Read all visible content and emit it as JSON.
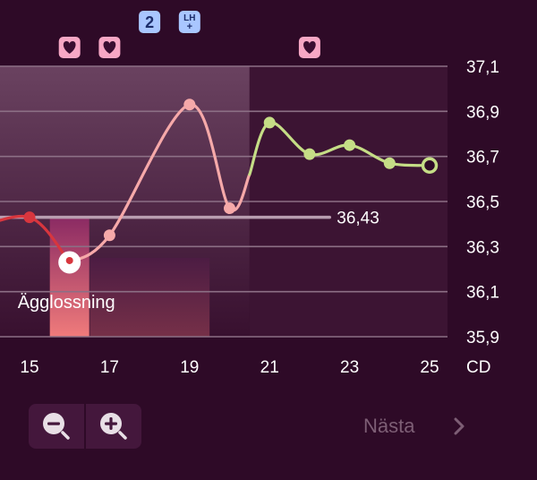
{
  "colors": {
    "background": "#2e0a27",
    "band_light": "#6a4260",
    "band_dark": "#3c1433",
    "grid": "#8c6f85",
    "baseline": "#b89db0",
    "phase_pre": "#d8363e",
    "phase_mid": "#f6a9a9",
    "phase_post": "#c5dd86",
    "ovulation_fill": "#f07b7b",
    "heart_badge": "#f7a7c5",
    "heart_icon": "#3a0e31",
    "number_badge": "#a9c6ff",
    "number_text": "#1c2d6b",
    "label_text": "#ffffff",
    "muted_text": "#7d5e75"
  },
  "chart_data": {
    "type": "line",
    "x_unit_label": "CD",
    "xticks": [
      15,
      17,
      19,
      21,
      23,
      25
    ],
    "yticks": [
      "37,1",
      "36,9",
      "36,7",
      "36,5",
      "36,3",
      "36,1",
      "35,9"
    ],
    "ylim": [
      35.9,
      37.1
    ],
    "xlim": [
      13.5,
      25
    ],
    "series": [
      {
        "phase": "pre",
        "x": [
          13.5,
          15,
          16
        ],
        "y": [
          36.37,
          36.43,
          36.23
        ]
      },
      {
        "phase": "mid",
        "x": [
          16,
          17,
          19,
          20,
          20.5
        ],
        "y": [
          36.23,
          36.35,
          36.93,
          36.47,
          36.62
        ]
      },
      {
        "phase": "post",
        "x": [
          20.5,
          21,
          22,
          23,
          24,
          25
        ],
        "y": [
          36.62,
          36.85,
          36.71,
          36.75,
          36.67,
          36.66
        ]
      }
    ],
    "baseline": {
      "value": 36.43,
      "label": "36,43"
    },
    "annotation": {
      "label": "Ägglossning",
      "x": 16
    },
    "ovulation_bar": {
      "x": 16,
      "top_y": 36.43
    },
    "highlight_range": {
      "x": [
        17,
        19.5
      ],
      "top_y": 36.25
    },
    "shade_bands": [
      {
        "x": [
          13.5,
          20.5
        ],
        "tone": "light"
      },
      {
        "x": [
          20.5,
          25.5
        ],
        "tone": "dark"
      }
    ],
    "open_marker": {
      "x": 25,
      "y": 36.66
    },
    "white_marker": {
      "x": 16,
      "y": 36.23
    },
    "markers": [
      {
        "type": "heart",
        "x": 16
      },
      {
        "type": "heart",
        "x": 17
      },
      {
        "type": "heart",
        "x": 22
      },
      {
        "type": "number",
        "x": 18,
        "text": "2"
      },
      {
        "type": "lh",
        "x": 19,
        "text": "LH+"
      },
      {
        "type": "number",
        "x": 13.3,
        "text": ""
      }
    ]
  },
  "controls": {
    "zoom_out_icon": "magnifier-minus-icon",
    "zoom_in_icon": "magnifier-plus-icon",
    "next_label": "Nästa",
    "next_icon": "chevron-right-icon"
  }
}
